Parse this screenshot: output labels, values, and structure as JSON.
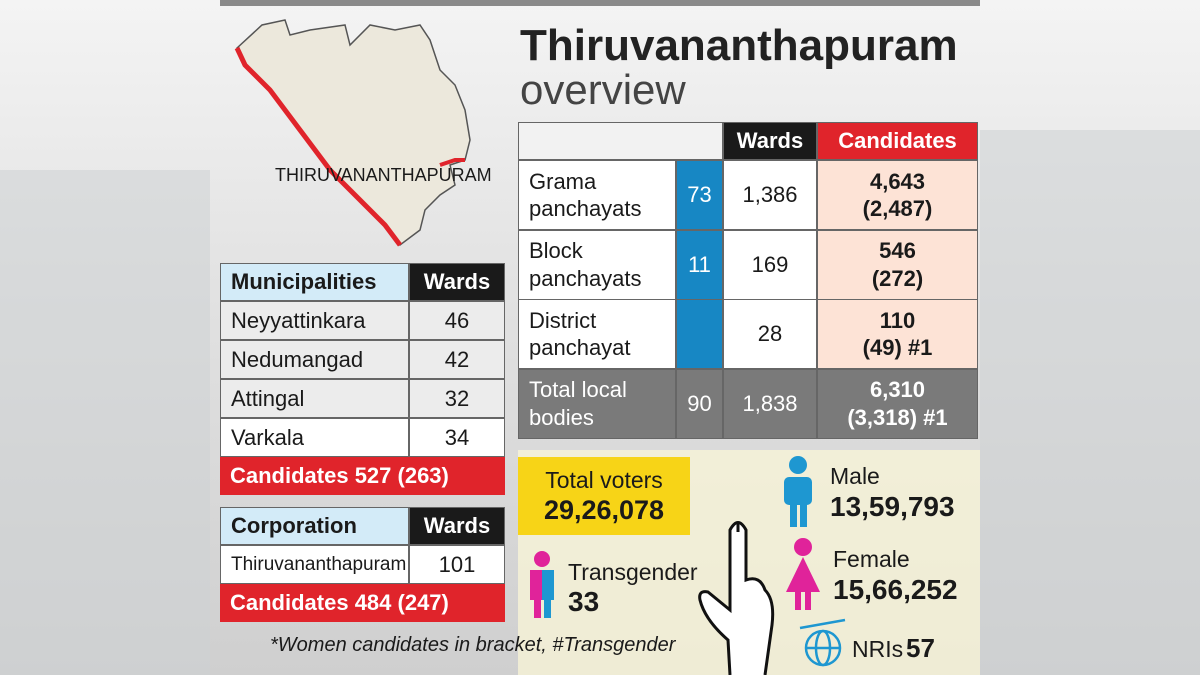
{
  "map_label": "THIRUVANANTHAPURAM",
  "title": "Thiruvananthapuram",
  "subtitle": "overview",
  "municipalities": {
    "header": [
      "Municipalities",
      "Wards"
    ],
    "rows": [
      [
        "Neyyattinkara",
        "46"
      ],
      [
        "Nedumangad",
        "42"
      ],
      [
        "Attingal",
        "32"
      ],
      [
        "Varkala",
        "34"
      ]
    ],
    "candidates": "Candidates 527 (263)"
  },
  "corporation": {
    "header": [
      "Corporation",
      "Wards"
    ],
    "rows": [
      [
        "Thiruvananthapuram",
        "101"
      ]
    ],
    "candidates": "Candidates 484 (247)"
  },
  "overview": {
    "header": [
      "Wards",
      "Candidates"
    ],
    "rows": [
      {
        "name": [
          "Grama",
          "panchayats"
        ],
        "count": "73",
        "wards": "1,386",
        "candidates": [
          "4,643",
          "(2,487)"
        ]
      },
      {
        "name": [
          "Block",
          "panchayats"
        ],
        "count": "11",
        "wards": "169",
        "candidates": [
          "546",
          "(272)"
        ]
      },
      {
        "name": [
          "District",
          "panchayat"
        ],
        "wards": "28",
        "candidates": [
          "110",
          "(49) #1"
        ]
      },
      {
        "name": [
          "Total local",
          "bodies"
        ],
        "count": "90",
        "wards": "1,838",
        "candidates": [
          "6,310",
          "(3,318) #1"
        ]
      }
    ]
  },
  "voters": {
    "total": {
      "label": "Total voters",
      "value": "29,26,078"
    },
    "male": {
      "label": "Male",
      "value": "13,59,793"
    },
    "female": {
      "label": "Female",
      "value": "15,66,252"
    },
    "transgender": {
      "label": "Transgender",
      "value": "33"
    },
    "nris": {
      "label": "NRIs",
      "value": "57"
    }
  },
  "footnote": "*Women candidates in bracket, #Transgender"
}
